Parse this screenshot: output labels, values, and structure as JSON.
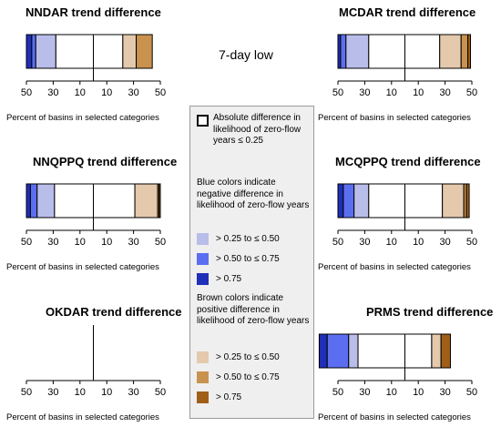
{
  "center_label": "7-day low",
  "tick_labels": [
    "50",
    "30",
    "10",
    "10",
    "30",
    "50"
  ],
  "colors": {
    "blue_dark": "#1f2fb8",
    "blue_mid": "#5c6ef0",
    "blue_light": "#b9bdea",
    "white": "#ffffff",
    "tan_light": "#e4c9ac",
    "tan_mid": "#c9924e",
    "brown_dark": "#a05f19"
  },
  "legend": {
    "abs_label": "Absolute difference in likelihood of zero-flow years ≤ 0.25",
    "blue_header": "Blue colors indicate negative difference in likelihood of zero-flow years",
    "blue_items": [
      "> 0.25 to ≤ 0.50",
      "> 0.50 to ≤ 0.75",
      "> 0.75"
    ],
    "brown_header": "Brown colors indicate positive difference in likelihood of zero-flow years",
    "brown_items": [
      "> 0.25 to ≤ 0.50",
      "> 0.50 to ≤ 0.75",
      "> 0.75"
    ]
  },
  "chart_data": [
    {
      "type": "bar",
      "title": "NNDAR trend difference",
      "xlabel": "Percent of basins in selected categories",
      "xlim": [
        -50,
        50
      ],
      "segments": [
        {
          "category": "> 0.75 negative",
          "start": -50,
          "end": -46,
          "color": "blue_dark"
        },
        {
          "category": "> 0.50 to ≤ 0.75 negative",
          "start": -46,
          "end": -43,
          "color": "blue_mid"
        },
        {
          "category": "> 0.25 to ≤ 0.50 negative",
          "start": -43,
          "end": -28,
          "color": "blue_light"
        },
        {
          "category": "≤ 0.25",
          "start": -28,
          "end": 0,
          "color": "white"
        },
        {
          "category": "≤ 0.25",
          "start": 0,
          "end": 22,
          "color": "white"
        },
        {
          "category": "> 0.25 to ≤ 0.50 positive",
          "start": 22,
          "end": 32,
          "color": "tan_light"
        },
        {
          "category": "> 0.50 to ≤ 0.75 positive",
          "start": 32,
          "end": 44,
          "color": "tan_mid"
        }
      ]
    },
    {
      "type": "bar",
      "title": "MCDAR trend difference",
      "xlabel": "Percent of basins in selected categories",
      "xlim": [
        -50,
        50
      ],
      "segments": [
        {
          "category": "> 0.75 negative",
          "start": -50,
          "end": -48,
          "color": "blue_dark"
        },
        {
          "category": "> 0.50 to ≤ 0.75 negative",
          "start": -48,
          "end": -44,
          "color": "blue_mid"
        },
        {
          "category": "> 0.25 to ≤ 0.50 negative",
          "start": -44,
          "end": -27,
          "color": "blue_light"
        },
        {
          "category": "≤ 0.25",
          "start": -27,
          "end": 0,
          "color": "white"
        },
        {
          "category": "≤ 0.25",
          "start": 0,
          "end": 26,
          "color": "white"
        },
        {
          "category": "> 0.25 to ≤ 0.50 positive",
          "start": 26,
          "end": 42,
          "color": "tan_light"
        },
        {
          "category": "> 0.50 to ≤ 0.75 positive",
          "start": 42,
          "end": 47,
          "color": "tan_mid"
        },
        {
          "category": "> 0.75 positive",
          "start": 47,
          "end": 49,
          "color": "brown_dark"
        }
      ]
    },
    {
      "type": "bar",
      "title": "NNQPPQ  trend difference",
      "xlabel": "Percent of basins in selected categories",
      "xlim": [
        -50,
        50
      ],
      "segments": [
        {
          "category": "> 0.75 negative",
          "start": -50,
          "end": -47,
          "color": "blue_dark"
        },
        {
          "category": "> 0.50 to ≤ 0.75 negative",
          "start": -47,
          "end": -42,
          "color": "blue_mid"
        },
        {
          "category": "> 0.25 to ≤ 0.50 negative",
          "start": -42,
          "end": -29,
          "color": "blue_light"
        },
        {
          "category": "≤ 0.25",
          "start": -29,
          "end": 0,
          "color": "white"
        },
        {
          "category": "≤ 0.25",
          "start": 0,
          "end": 31,
          "color": "white"
        },
        {
          "category": "> 0.25 to ≤ 0.50 positive",
          "start": 31,
          "end": 48,
          "color": "tan_light"
        },
        {
          "category": "> 0.50 to ≤ 0.75 positive",
          "start": 48,
          "end": 49,
          "color": "tan_mid"
        },
        {
          "category": "> 0.75 positive",
          "start": 49,
          "end": 50,
          "color": "brown_dark"
        }
      ]
    },
    {
      "type": "bar",
      "title": "MCQPPQ  trend difference",
      "xlabel": "Percent of basins in selected categories",
      "xlim": [
        -50,
        50
      ],
      "segments": [
        {
          "category": "> 0.75 negative",
          "start": -50,
          "end": -46,
          "color": "blue_dark"
        },
        {
          "category": "> 0.50 to ≤ 0.75 negative",
          "start": -46,
          "end": -38,
          "color": "blue_mid"
        },
        {
          "category": "> 0.25 to ≤ 0.50 negative",
          "start": -38,
          "end": -27,
          "color": "blue_light"
        },
        {
          "category": "≤ 0.25",
          "start": -27,
          "end": 0,
          "color": "white"
        },
        {
          "category": "≤ 0.25",
          "start": 0,
          "end": 28,
          "color": "white"
        },
        {
          "category": "> 0.25 to ≤ 0.50 positive",
          "start": 28,
          "end": 44,
          "color": "tan_light"
        },
        {
          "category": "> 0.50 to ≤ 0.75 positive",
          "start": 44,
          "end": 46,
          "color": "tan_mid"
        },
        {
          "category": "> 0.75 positive",
          "start": 46,
          "end": 48,
          "color": "brown_dark"
        }
      ]
    },
    {
      "type": "bar",
      "title": "OKDAR  trend difference",
      "xlabel": "Percent of basins in selected categories",
      "xlim": [
        -50,
        50
      ],
      "segments": []
    },
    {
      "type": "bar",
      "title": "PRMS  trend difference",
      "xlabel": "Percent of basins in selected categories",
      "xlim": [
        -50,
        50
      ],
      "segments": [
        {
          "category": "> 0.75 negative",
          "start": -64,
          "end": -58,
          "color": "blue_dark"
        },
        {
          "category": "> 0.50 to ≤ 0.75 negative",
          "start": -58,
          "end": -42,
          "color": "blue_mid"
        },
        {
          "category": "> 0.25 to ≤ 0.50 negative",
          "start": -42,
          "end": -35,
          "color": "blue_light"
        },
        {
          "category": "≤ 0.25",
          "start": -35,
          "end": 0,
          "color": "white"
        },
        {
          "category": "≤ 0.25",
          "start": 0,
          "end": 20,
          "color": "white"
        },
        {
          "category": "> 0.25 to ≤ 0.50 positive",
          "start": 20,
          "end": 27,
          "color": "tan_light"
        },
        {
          "category": "> 0.75 positive",
          "start": 27,
          "end": 34,
          "color": "brown_dark"
        }
      ]
    }
  ]
}
